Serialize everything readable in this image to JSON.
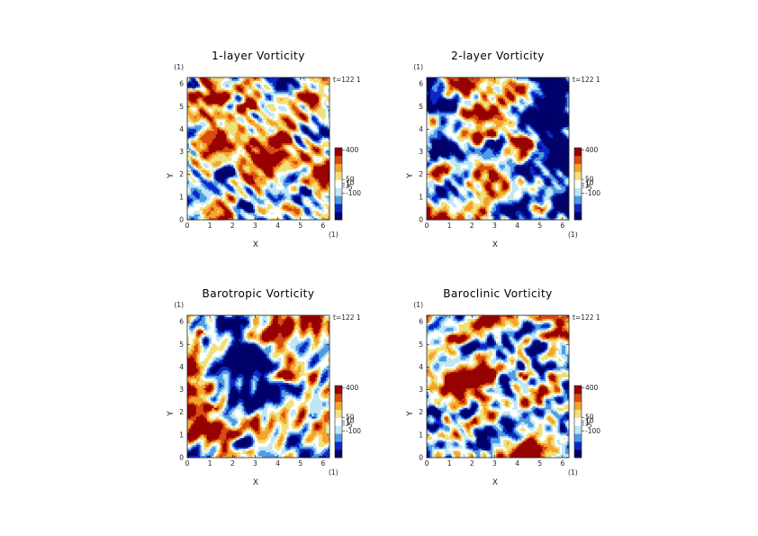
{
  "chart_data": [
    {
      "type": "heatmap",
      "title": "1-layer Vorticity",
      "xlabel": "X",
      "ylabel": "Y",
      "unit_x": "(1)",
      "unit_y": "(1)",
      "time_label": "t=122 1",
      "xlim": [
        0,
        6.283
      ],
      "ylim": [
        0,
        6.283
      ],
      "x_ticks": [
        "0",
        "1",
        "2",
        "3",
        "4",
        "5",
        "6"
      ],
      "y_ticks": [
        "0",
        "1",
        "2",
        "3",
        "4",
        "5",
        "6"
      ],
      "colorbar_labels": [
        "400",
        "50",
        "10",
        "1",
        "-5",
        "-100"
      ],
      "colorbar_colors": [
        "#00006a",
        "#0a28c8",
        "#4f9ae0",
        "#bfe6f5",
        "#ffffff",
        "#f0e07a",
        "#f5a32a",
        "#d84a10",
        "#960000"
      ],
      "field_bias": 0.15,
      "vortices": [
        {
          "x": 4.25,
          "y": 3.55,
          "sign": 1,
          "strength": 1.0
        },
        {
          "x": 2.5,
          "y": 0.6,
          "sign": -1,
          "strength": 0.9
        },
        {
          "x": 1.7,
          "y": 2.1,
          "sign": -1,
          "strength": 0.8
        },
        {
          "x": 0.2,
          "y": 5.9,
          "sign": -1,
          "strength": 0.7
        },
        {
          "x": 5.3,
          "y": 1.3,
          "sign": -1,
          "strength": 0.6
        },
        {
          "x": 2.7,
          "y": 5.0,
          "sign": 1,
          "strength": 0.7
        },
        {
          "x": 1.3,
          "y": 5.3,
          "sign": 1,
          "strength": 0.7
        }
      ]
    },
    {
      "type": "heatmap",
      "title": "2-layer Vorticity",
      "xlabel": "X",
      "ylabel": "Y",
      "unit_x": "(1)",
      "unit_y": "(1)",
      "time_label": "t=122 1",
      "xlim": [
        0,
        6.283
      ],
      "ylim": [
        0,
        6.283
      ],
      "x_ticks": [
        "0",
        "1",
        "2",
        "3",
        "4",
        "5",
        "6"
      ],
      "y_ticks": [
        "0",
        "1",
        "2",
        "3",
        "4",
        "5",
        "6"
      ],
      "colorbar_labels": [
        "400",
        "50",
        "10",
        "1",
        "-5",
        "-100"
      ],
      "colorbar_colors": [
        "#00006a",
        "#0a28c8",
        "#4f9ae0",
        "#bfe6f5",
        "#ffffff",
        "#f0e07a",
        "#f5a32a",
        "#d84a10",
        "#960000"
      ],
      "field_bias": -0.15,
      "vortices": [
        {
          "x": 4.2,
          "y": 3.5,
          "sign": 1,
          "strength": 0.5
        },
        {
          "x": 3.0,
          "y": 3.4,
          "sign": -1,
          "strength": 0.8
        },
        {
          "x": 1.0,
          "y": 5.0,
          "sign": -1,
          "strength": 0.7
        },
        {
          "x": 5.5,
          "y": 5.0,
          "sign": -1,
          "strength": 0.7
        },
        {
          "x": 0.8,
          "y": 2.2,
          "sign": 1,
          "strength": 0.6
        },
        {
          "x": 5.0,
          "y": 0.5,
          "sign": 1,
          "strength": 0.6
        }
      ]
    },
    {
      "type": "heatmap",
      "title": "Barotropic Vorticity",
      "xlabel": "X",
      "ylabel": "Y",
      "unit_x": "(1)",
      "unit_y": "(1)",
      "time_label": "t=122 1",
      "xlim": [
        0,
        6.283
      ],
      "ylim": [
        0,
        6.283
      ],
      "x_ticks": [
        "0",
        "1",
        "2",
        "3",
        "4",
        "5",
        "6"
      ],
      "y_ticks": [
        "0",
        "1",
        "2",
        "3",
        "4",
        "5",
        "6"
      ],
      "colorbar_labels": [
        "400",
        "50",
        "10",
        "1",
        "-5",
        "-100"
      ],
      "colorbar_colors": [
        "#00006a",
        "#0a28c8",
        "#4f9ae0",
        "#bfe6f5",
        "#ffffff",
        "#f0e07a",
        "#f5a32a",
        "#d84a10",
        "#960000"
      ],
      "field_bias": 0.0,
      "vortices": [
        {
          "x": 4.25,
          "y": 3.6,
          "sign": 1,
          "strength": 1.0
        },
        {
          "x": 2.5,
          "y": 0.6,
          "sign": -1,
          "strength": 0.9
        },
        {
          "x": 1.2,
          "y": 2.2,
          "sign": 1,
          "strength": 0.6
        },
        {
          "x": 0.7,
          "y": 5.5,
          "sign": 1,
          "strength": 0.6
        },
        {
          "x": 5.5,
          "y": 1.8,
          "sign": -1,
          "strength": 0.5
        }
      ]
    },
    {
      "type": "heatmap",
      "title": "Baroclinic Vorticity",
      "xlabel": "X",
      "ylabel": "Y",
      "unit_x": "(1)",
      "unit_y": "(1)",
      "time_label": "t=122 1",
      "xlim": [
        0,
        6.283
      ],
      "ylim": [
        0,
        6.283
      ],
      "x_ticks": [
        "0",
        "1",
        "2",
        "3",
        "4",
        "5",
        "6"
      ],
      "y_ticks": [
        "0",
        "1",
        "2",
        "3",
        "4",
        "5",
        "6"
      ],
      "colorbar_labels": [
        "400",
        "50",
        "10",
        "1",
        "-5",
        "-100"
      ],
      "colorbar_colors": [
        "#00006a",
        "#0a28c8",
        "#4f9ae0",
        "#bfe6f5",
        "#ffffff",
        "#f0e07a",
        "#f5a32a",
        "#d84a10",
        "#960000"
      ],
      "field_bias": 0.05,
      "vortices": [
        {
          "x": 4.25,
          "y": 3.6,
          "sign": 1,
          "strength": 0.9
        },
        {
          "x": 2.5,
          "y": 0.6,
          "sign": -1,
          "strength": 0.9
        },
        {
          "x": 1.8,
          "y": 2.0,
          "sign": -1,
          "strength": 0.8
        },
        {
          "x": 5.0,
          "y": 5.0,
          "sign": -1,
          "strength": 0.8
        },
        {
          "x": 1.3,
          "y": 5.2,
          "sign": 1,
          "strength": 0.8
        },
        {
          "x": 3.3,
          "y": 4.5,
          "sign": -1,
          "strength": 0.5
        }
      ]
    }
  ]
}
